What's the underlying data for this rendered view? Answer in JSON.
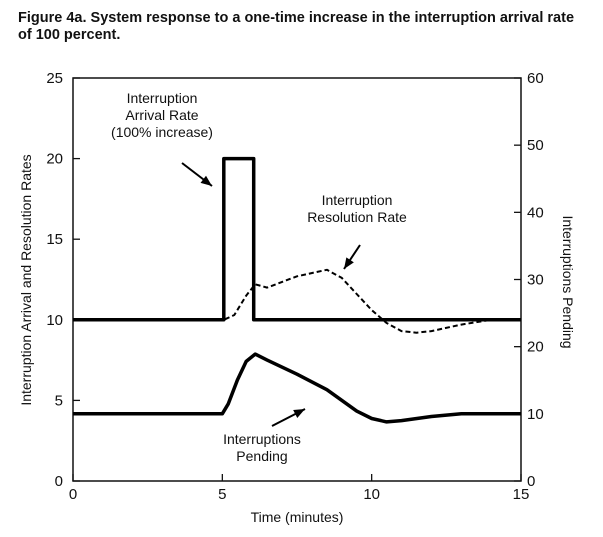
{
  "figure": {
    "caption": "Figure 4a. System response to a one-time increase in the interruption arrival rate of 100 percent."
  },
  "chart_data": {
    "type": "line",
    "xlabel": "Time (minutes)",
    "ylabel_left": "Interruption Arrival and Resolution Rates",
    "ylabel_right": "Interruptions Pending",
    "xlim": [
      0,
      15
    ],
    "ylim_left": [
      0,
      25
    ],
    "ylim_right": [
      0,
      60
    ],
    "x_ticks": [
      0,
      5,
      10,
      15
    ],
    "y_ticks_left": [
      0,
      5,
      10,
      15,
      20,
      25
    ],
    "y_ticks_right": [
      0,
      10,
      20,
      30,
      40,
      50,
      60
    ],
    "grid": false,
    "legend": "none",
    "series": [
      {
        "name": "Interruption Arrival Rate (100% increase)",
        "axis": "left",
        "style": "solid",
        "x": [
          0,
          5.05,
          5.05,
          6.05,
          6.05,
          15
        ],
        "y": [
          10,
          10,
          20,
          20,
          10,
          10
        ]
      },
      {
        "name": "Interruption Resolution Rate",
        "axis": "left",
        "style": "dashed",
        "x": [
          0,
          5.05,
          5.4,
          5.8,
          6.1,
          6.5,
          7.5,
          8.5,
          9.0,
          9.5,
          10.0,
          10.5,
          11.0,
          11.5,
          12.0,
          13.0,
          14.0,
          15.0
        ],
        "y": [
          10,
          10,
          10.3,
          11.5,
          12.2,
          12.0,
          12.7,
          13.1,
          12.6,
          11.6,
          10.6,
          9.8,
          9.3,
          9.2,
          9.3,
          9.7,
          10.0,
          10.0
        ]
      },
      {
        "name": "Interruptions Pending",
        "axis": "right",
        "style": "solid",
        "x": [
          0,
          5.0,
          5.2,
          5.5,
          5.8,
          6.1,
          6.5,
          7.5,
          8.5,
          9.5,
          10.0,
          10.5,
          11.0,
          12.0,
          13.0,
          14.0,
          15.0
        ],
        "y": [
          10,
          10,
          11.5,
          15.0,
          17.8,
          18.9,
          18.0,
          15.9,
          13.6,
          10.4,
          9.3,
          8.8,
          9.0,
          9.6,
          10.0,
          10.0,
          10.0
        ]
      }
    ],
    "annotations": [
      {
        "lines": [
          "Interruption",
          "Arrival Rate",
          "(100% increase)"
        ],
        "target": "arrival"
      },
      {
        "lines": [
          "Interruption",
          "Resolution Rate"
        ],
        "target": "resolution"
      },
      {
        "lines": [
          "Interruptions",
          "Pending"
        ],
        "target": "pending"
      }
    ]
  }
}
